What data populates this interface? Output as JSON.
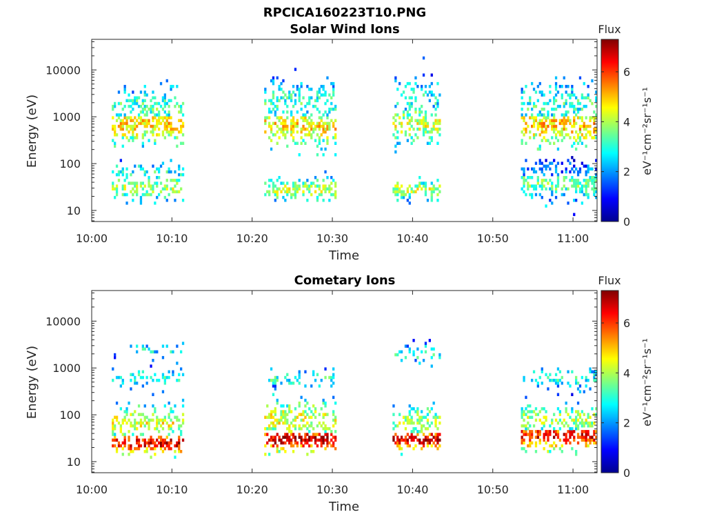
{
  "figure": {
    "title": "RPCICA160223T10.PNG"
  },
  "chart_data": [
    {
      "type": "heatmap",
      "title": "Solar Wind Ions",
      "xlabel": "Time",
      "ylabel": "Energy (eV)",
      "x_ticks": [
        "10:00",
        "10:10",
        "10:20",
        "10:30",
        "10:40",
        "10:50",
        "11:00"
      ],
      "x_range_minutes": [
        0,
        63
      ],
      "y_ticks": [
        "10",
        "100",
        "1000",
        "10000"
      ],
      "y_scale": "log",
      "y_range": [
        5.8,
        45000
      ],
      "colorbar": {
        "label": "Flux",
        "units": "eV⁻¹cm⁻²sr⁻¹s⁻¹",
        "ticks": [
          "0",
          "2",
          "4",
          "6"
        ],
        "range": [
          0,
          7.3
        ],
        "colormap": "jet"
      },
      "bursts": [
        {
          "t_start": 2.5,
          "t_end": 11.5,
          "pop": [
            {
              "e_center": 700,
              "flux": 4.4,
              "spread": 0.35,
              "density": 0.55
            },
            {
              "e_center": 1500,
              "flux": 3.0,
              "spread": 0.35,
              "density": 0.35
            },
            {
              "e_center": 30,
              "flux": 3.6,
              "spread": 0.22,
              "density": 0.45
            },
            {
              "e_center": 70,
              "flux": 2.6,
              "spread": 0.2,
              "density": 0.3
            }
          ]
        },
        {
          "t_start": 21.5,
          "t_end": 30.5,
          "pop": [
            {
              "e_center": 650,
              "flux": 4.3,
              "spread": 0.35,
              "density": 0.5
            },
            {
              "e_center": 2000,
              "flux": 2.8,
              "spread": 0.4,
              "density": 0.3
            },
            {
              "e_center": 28,
              "flux": 3.7,
              "spread": 0.2,
              "density": 0.5
            }
          ]
        },
        {
          "t_start": 37.5,
          "t_end": 43.5,
          "pop": [
            {
              "e_center": 700,
              "flux": 3.8,
              "spread": 0.35,
              "density": 0.4
            },
            {
              "e_center": 2500,
              "flux": 2.6,
              "spread": 0.35,
              "density": 0.3
            },
            {
              "e_center": 28,
              "flux": 3.8,
              "spread": 0.15,
              "density": 0.55
            }
          ]
        },
        {
          "t_start": 53.5,
          "t_end": 63,
          "pop": [
            {
              "e_center": 650,
              "flux": 4.5,
              "spread": 0.35,
              "density": 0.55
            },
            {
              "e_center": 1800,
              "flux": 2.8,
              "spread": 0.4,
              "density": 0.35
            },
            {
              "e_center": 40,
              "flux": 3.2,
              "spread": 0.3,
              "density": 0.5
            },
            {
              "e_center": 70,
              "flux": 1.5,
              "spread": 0.2,
              "density": 0.3
            }
          ]
        }
      ]
    },
    {
      "type": "heatmap",
      "title": "Cometary Ions",
      "xlabel": "Time",
      "ylabel": "Energy (eV)",
      "x_ticks": [
        "10:00",
        "10:10",
        "10:20",
        "10:30",
        "10:40",
        "10:50",
        "11:00"
      ],
      "x_range_minutes": [
        0,
        63
      ],
      "y_ticks": [
        "10",
        "100",
        "1000",
        "10000"
      ],
      "y_scale": "log",
      "y_range": [
        5.8,
        45000
      ],
      "colorbar": {
        "label": "Flux",
        "units": "eV⁻¹cm⁻²sr⁻¹s⁻¹",
        "ticks": [
          "0",
          "2",
          "4",
          "6"
        ],
        "range": [
          0,
          7.3
        ],
        "colormap": "jet"
      },
      "bursts": [
        {
          "t_start": 2.5,
          "t_end": 11.5,
          "pop": [
            {
              "e_center": 25,
              "flux": 6.0,
              "spread": 0.18,
              "density": 0.6
            },
            {
              "e_center": 70,
              "flux": 4.0,
              "spread": 0.3,
              "density": 0.45
            },
            {
              "e_center": 650,
              "flux": 2.8,
              "spread": 0.15,
              "density": 0.3
            },
            {
              "e_center": 2500,
              "flux": 2.6,
              "spread": 0.1,
              "density": 0.2
            }
          ]
        },
        {
          "t_start": 21.5,
          "t_end": 30.5,
          "pop": [
            {
              "e_center": 30,
              "flux": 6.2,
              "spread": 0.2,
              "density": 0.65
            },
            {
              "e_center": 80,
              "flux": 4.0,
              "spread": 0.35,
              "density": 0.4
            },
            {
              "e_center": 600,
              "flux": 2.8,
              "spread": 0.15,
              "density": 0.25
            }
          ]
        },
        {
          "t_start": 37.5,
          "t_end": 43.5,
          "pop": [
            {
              "e_center": 30,
              "flux": 6.2,
              "spread": 0.18,
              "density": 0.65
            },
            {
              "e_center": 70,
              "flux": 3.6,
              "spread": 0.3,
              "density": 0.4
            },
            {
              "e_center": 2000,
              "flux": 2.6,
              "spread": 0.2,
              "density": 0.2
            }
          ]
        },
        {
          "t_start": 53.5,
          "t_end": 63,
          "pop": [
            {
              "e_center": 35,
              "flux": 5.8,
              "spread": 0.22,
              "density": 0.6
            },
            {
              "e_center": 80,
              "flux": 3.6,
              "spread": 0.3,
              "density": 0.4
            },
            {
              "e_center": 600,
              "flux": 2.6,
              "spread": 0.2,
              "density": 0.25
            }
          ]
        }
      ]
    }
  ]
}
